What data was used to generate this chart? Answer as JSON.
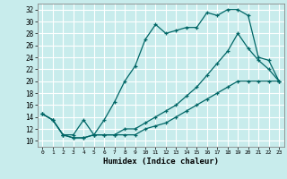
{
  "xlabel": "Humidex (Indice chaleur)",
  "bg_color": "#c8ecec",
  "grid_color": "#ffffff",
  "line_color": "#006666",
  "xlim": [
    -0.5,
    23.5
  ],
  "ylim": [
    9,
    33
  ],
  "xticks": [
    0,
    1,
    2,
    3,
    4,
    5,
    6,
    7,
    8,
    9,
    10,
    11,
    12,
    13,
    14,
    15,
    16,
    17,
    18,
    19,
    20,
    21,
    22,
    23
  ],
  "yticks": [
    10,
    12,
    14,
    16,
    18,
    20,
    22,
    24,
    26,
    28,
    30,
    32
  ],
  "series1_x": [
    0,
    1,
    2,
    3,
    4,
    5,
    6,
    7,
    8,
    9,
    10,
    11,
    12,
    13,
    14,
    15,
    16,
    17,
    18,
    19,
    20,
    21,
    22,
    23
  ],
  "series1_y": [
    14.5,
    13.5,
    11,
    10.5,
    10.5,
    11,
    13.5,
    16.5,
    20,
    22.5,
    27,
    29.5,
    28,
    28.5,
    29,
    29,
    31.5,
    31,
    32,
    32,
    31,
    24,
    23.5,
    20
  ],
  "series2_x": [
    0,
    1,
    2,
    3,
    4,
    5,
    6,
    7,
    8,
    9,
    10,
    11,
    12,
    13,
    14,
    15,
    16,
    17,
    18,
    19,
    20,
    21,
    22,
    23
  ],
  "series2_y": [
    14.5,
    13.5,
    11,
    11,
    13.5,
    11,
    11,
    11,
    12,
    12,
    13,
    14,
    15,
    16,
    17.5,
    19,
    21,
    23,
    25,
    28,
    25.5,
    23.5,
    22,
    20
  ],
  "series3_x": [
    0,
    1,
    2,
    3,
    4,
    5,
    6,
    7,
    8,
    9,
    10,
    11,
    12,
    13,
    14,
    15,
    16,
    17,
    18,
    19,
    20,
    21,
    22,
    23
  ],
  "series3_y": [
    14.5,
    13.5,
    11,
    10.5,
    10.5,
    11,
    11,
    11,
    11,
    11,
    12,
    12.5,
    13,
    14,
    15,
    16,
    17,
    18,
    19,
    20,
    20,
    20,
    20,
    20
  ]
}
